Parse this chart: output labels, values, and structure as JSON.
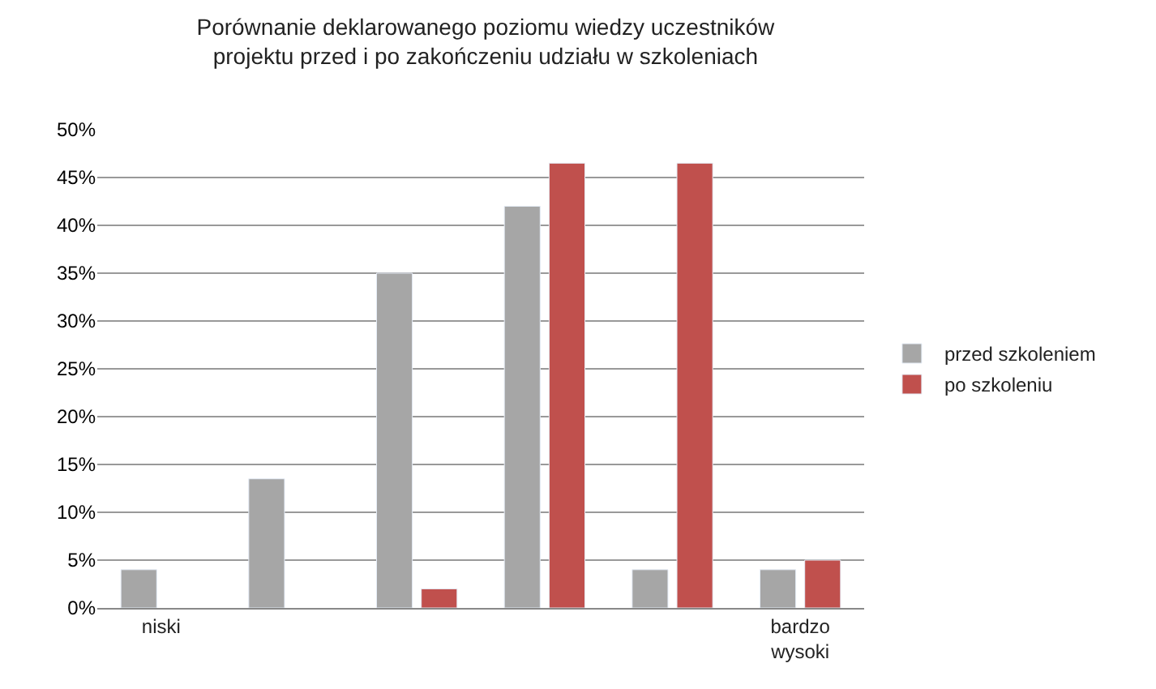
{
  "chart_data": {
    "type": "bar",
    "title": "Porównanie deklarowanego poziomu wiedzy uczestników\nprojektu przed i po zakończeniu udziału w szkoleniach",
    "categories": [
      "niski",
      null,
      null,
      null,
      null,
      "bardzo\nwysoki"
    ],
    "series": [
      {
        "name": "przed szkoleniem",
        "color": "#a6a6a6",
        "values": [
          4,
          13.5,
          35,
          42,
          4,
          4
        ]
      },
      {
        "name": "po szkoleniu",
        "color": "#c0504d",
        "values": [
          null,
          null,
          2,
          46.5,
          46.5,
          5
        ]
      }
    ],
    "ylim": [
      0,
      50
    ],
    "yticks": [
      {
        "value": 0,
        "label": "0%"
      },
      {
        "value": 5,
        "label": "5%"
      },
      {
        "value": 10,
        "label": "10%"
      },
      {
        "value": 15,
        "label": "15%"
      },
      {
        "value": 20,
        "label": "20%"
      },
      {
        "value": 25,
        "label": "25%"
      },
      {
        "value": 30,
        "label": "30%"
      },
      {
        "value": 35,
        "label": "35%"
      },
      {
        "value": 40,
        "label": "40%"
      },
      {
        "value": 45,
        "label": "45%"
      },
      {
        "value": 50,
        "label": "50%"
      }
    ],
    "grid": "y",
    "legend": "right"
  }
}
